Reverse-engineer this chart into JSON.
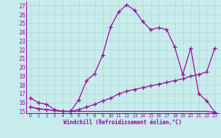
{
  "xlabel": "Windchill (Refroidissement éolien,°C)",
  "bg_color": "#c8ecec",
  "grid_color": "#b0d8d8",
  "line_color": "#990099",
  "xlim": [
    -0.5,
    23.5
  ],
  "ylim": [
    14.8,
    27.5
  ],
  "yticks": [
    15,
    16,
    17,
    18,
    19,
    20,
    21,
    22,
    23,
    24,
    25,
    26,
    27
  ],
  "xticks": [
    0,
    1,
    2,
    3,
    4,
    5,
    6,
    7,
    8,
    9,
    10,
    11,
    12,
    13,
    14,
    15,
    16,
    17,
    18,
    19,
    20,
    21,
    22,
    23
  ],
  "line1_x": [
    0,
    1,
    2,
    3,
    4,
    5,
    6,
    7,
    8,
    9,
    10,
    11,
    12,
    13,
    14,
    15,
    16,
    17,
    18,
    19,
    20,
    21,
    22,
    23
  ],
  "line1_y": [
    16.5,
    16.0,
    15.8,
    15.2,
    15.0,
    15.0,
    16.3,
    18.5,
    19.3,
    21.4,
    24.6,
    26.3,
    27.1,
    26.5,
    25.2,
    24.3,
    24.5,
    24.3,
    22.3,
    19.2,
    22.2,
    17.0,
    16.2,
    14.9
  ],
  "line2_x": [
    0,
    1,
    2,
    3,
    4,
    5,
    6,
    7,
    8,
    9,
    10,
    11,
    12,
    13,
    14,
    15,
    16,
    17,
    18,
    19,
    20,
    21,
    22,
    23
  ],
  "line2_y": [
    15.5,
    15.3,
    15.2,
    15.1,
    15.0,
    15.0,
    15.2,
    15.5,
    15.8,
    16.2,
    16.5,
    17.0,
    17.3,
    17.5,
    17.7,
    17.9,
    18.1,
    18.3,
    18.5,
    18.7,
    19.0,
    19.2,
    19.5,
    22.2
  ],
  "line3_x": [
    0,
    1,
    2,
    3,
    4,
    5,
    6,
    7,
    8,
    9,
    10,
    11,
    12,
    13,
    14,
    15,
    16,
    17,
    18,
    19,
    20,
    21,
    22,
    23
  ],
  "line3_y": [
    15.5,
    15.3,
    15.2,
    15.1,
    15.0,
    15.0,
    15.0,
    15.0,
    15.0,
    15.0,
    15.0,
    15.0,
    15.0,
    15.0,
    15.0,
    15.0,
    15.0,
    15.0,
    15.0,
    15.0,
    15.0,
    15.0,
    15.0,
    14.9
  ]
}
